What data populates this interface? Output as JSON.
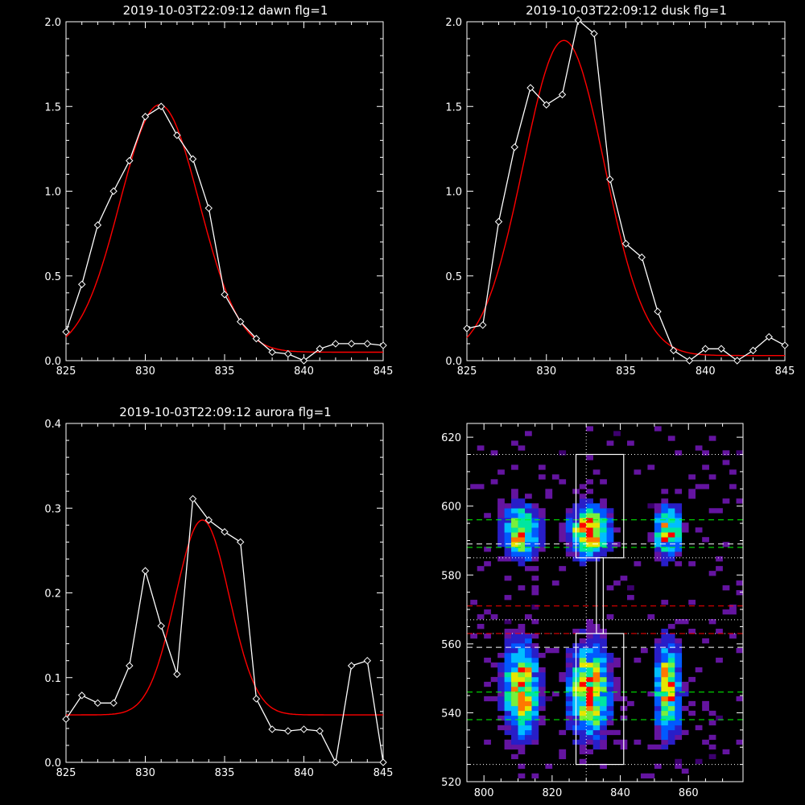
{
  "colors": {
    "bg": "#000000",
    "axes": "#ffffff",
    "data": "#ffffff",
    "fit": "#ff0000",
    "green": "#00ff00",
    "red_marker": "#ff0000"
  },
  "chart_data": [
    {
      "type": "line",
      "title": "2019-10-03T22:09:12 dawn flg=1",
      "xlim": [
        825,
        845
      ],
      "ylim": [
        0,
        2
      ],
      "xticks": [
        "825",
        "830",
        "835",
        "840",
        "845"
      ],
      "yticks": [
        "0.0",
        "0.5",
        "1.0",
        "1.5",
        "2.0"
      ],
      "series": [
        {
          "x": [
            825,
            826,
            827,
            828,
            829,
            830,
            831,
            832,
            833,
            834,
            835,
            836,
            837,
            838,
            839,
            840,
            841,
            842,
            843,
            844,
            845
          ],
          "values": [
            0.17,
            0.45,
            0.8,
            1.0,
            1.18,
            1.44,
            1.5,
            1.33,
            1.19,
            0.9,
            0.39,
            0.23,
            0.13,
            0.05,
            0.04,
            0.0,
            0.07,
            0.1,
            0.1,
            0.1,
            0.09
          ]
        }
      ],
      "fit": {
        "amp": 1.46,
        "center": 830.9,
        "sigma": 2.5,
        "baseline": 0.05
      }
    },
    {
      "type": "line",
      "title": "2019-10-03T22:09:12 dusk flg=1",
      "xlim": [
        825,
        845
      ],
      "ylim": [
        0,
        2
      ],
      "xticks": [
        "825",
        "830",
        "835",
        "840",
        "845"
      ],
      "yticks": [
        "0.0",
        "0.5",
        "1.0",
        "1.5",
        "2.0"
      ],
      "series": [
        {
          "x": [
            825,
            826,
            827,
            828,
            829,
            830,
            831,
            832,
            833,
            834,
            835,
            836,
            837,
            838,
            839,
            840,
            841,
            842,
            843,
            844,
            845
          ],
          "values": [
            0.19,
            0.21,
            0.82,
            1.26,
            1.61,
            1.51,
            1.57,
            2.01,
            1.93,
            1.07,
            0.69,
            0.61,
            0.29,
            0.06,
            0.0,
            0.07,
            0.07,
            0.0,
            0.06,
            0.14,
            0.09
          ]
        }
      ],
      "fit": {
        "amp": 1.86,
        "center": 831.1,
        "sigma": 2.55,
        "baseline": 0.03
      }
    },
    {
      "type": "line",
      "title": "2019-10-03T22:09:12 aurora flg=1",
      "xlim": [
        825,
        845
      ],
      "ylim": [
        0,
        0.4
      ],
      "xticks": [
        "825",
        "830",
        "835",
        "840",
        "845"
      ],
      "yticks": [
        "0.0",
        "0.1",
        "0.2",
        "0.3",
        "0.4"
      ],
      "series": [
        {
          "x": [
            825,
            826,
            827,
            828,
            829,
            830,
            831,
            832,
            833,
            834,
            835,
            836,
            837,
            838,
            839,
            840,
            841,
            842,
            843,
            844,
            845
          ],
          "values": [
            0.051,
            0.079,
            0.07,
            0.07,
            0.114,
            0.226,
            0.161,
            0.104,
            0.311,
            0.286,
            0.272,
            0.26,
            0.075,
            0.039,
            0.037,
            0.039,
            0.037,
            0.0,
            0.114,
            0.12,
            0.0
          ]
        }
      ],
      "fit": {
        "amp": 0.23,
        "center": 833.6,
        "sigma": 1.7,
        "baseline": 0.056
      }
    },
    {
      "type": "heatmap",
      "xlim": [
        795,
        876
      ],
      "ylim": [
        520,
        624
      ],
      "xticks": [
        "800",
        "820",
        "840",
        "860"
      ],
      "yticks": [
        "520",
        "540",
        "560",
        "580",
        "600",
        "620"
      ],
      "columns": [
        {
          "x": 810,
          "width": 3.5
        },
        {
          "x": 830,
          "width": 4.0
        },
        {
          "x": 853,
          "width": 2.5
        }
      ],
      "bands": [
        {
          "y": 592,
          "height": 5
        },
        {
          "y": 546,
          "height": 9
        }
      ],
      "boxes": [
        {
          "x0": 827,
          "x1": 841,
          "y0": 585,
          "y1": 615
        },
        {
          "x0": 827,
          "x1": 841,
          "y0": 525,
          "y1": 563
        },
        {
          "x0": 833,
          "x1": 835,
          "y0": 563,
          "y1": 585
        }
      ],
      "vline_x": 830,
      "dotted_y": [
        615,
        585,
        567,
        563,
        525
      ],
      "green_dashed_y": [
        596,
        588,
        546,
        538
      ],
      "white_dashed_y": [
        589,
        559
      ],
      "red_dashed_y": [
        571,
        563
      ]
    }
  ]
}
